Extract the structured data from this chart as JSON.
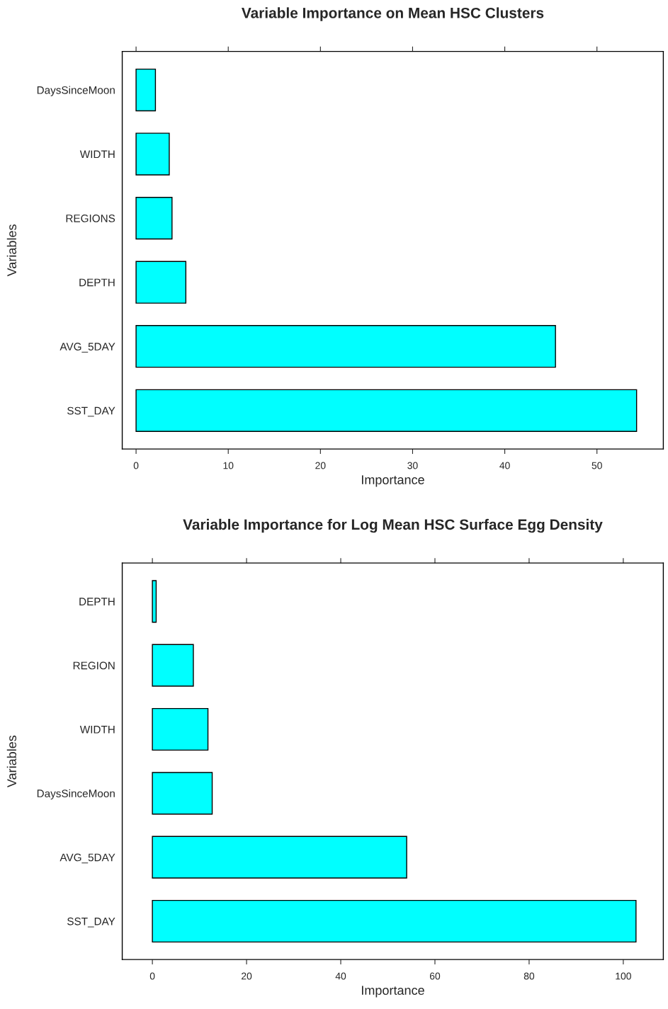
{
  "chart_data": [
    {
      "type": "bar",
      "orientation": "horizontal",
      "title": "Variable Importance on Mean HSC Clusters",
      "xlabel": "Importance",
      "ylabel": "Variables",
      "categories": [
        "DaysSinceMoon",
        "WIDTH",
        "REGIONS",
        "DEPTH",
        "AVG_5DAY",
        "SST_DAY"
      ],
      "values": [
        2.1,
        3.6,
        3.9,
        5.4,
        45.5,
        54.3
      ],
      "color": "#00ffff",
      "xlim": [
        -1.5,
        57.2
      ],
      "xticks": [
        0,
        10,
        20,
        30,
        40,
        50
      ],
      "grid": false,
      "legend": false
    },
    {
      "type": "bar",
      "orientation": "horizontal",
      "title": "Variable Importance for Log Mean HSC Surface Egg Density",
      "xlabel": "Importance",
      "ylabel": "Variables",
      "categories": [
        "DEPTH",
        "REGION",
        "WIDTH",
        "DaysSinceMoon",
        "AVG_5DAY",
        "SST_DAY"
      ],
      "values": [
        0.8,
        8.7,
        11.8,
        12.7,
        54,
        102.7
      ],
      "color": "#00ffff",
      "xlim": [
        -6.4,
        108.5
      ],
      "xticks": [
        0,
        20,
        40,
        60,
        80,
        100
      ],
      "grid": false,
      "legend": false
    }
  ]
}
